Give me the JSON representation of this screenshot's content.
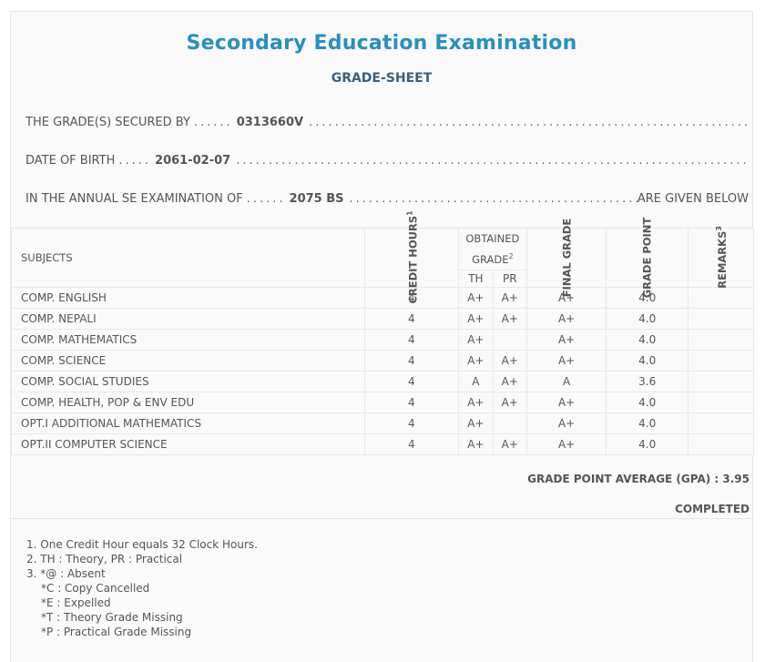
{
  "header": {
    "title": "Secondary Education Examination",
    "subtitle": "GRADE-SHEET"
  },
  "info": {
    "secured_by_label": "THE GRADE(S) SECURED BY",
    "secured_by_value": "0313660V",
    "dob_label": "DATE OF BIRTH",
    "dob_value": "2061-02-07",
    "exam_label": "IN THE ANNUAL SE EXAMINATION OF",
    "exam_value": "2075 BS",
    "exam_tail": "ARE GIVEN BELOW"
  },
  "table": {
    "headers": {
      "subjects": "SUBJECTS",
      "credit_hours": "CREDIT HOURS",
      "credit_hours_sup": "1",
      "obtained_grade": "OBTAINED GRADE",
      "obtained_grade_sup": "2",
      "th": "TH",
      "pr": "PR",
      "final_grade": "FINAL GRADE",
      "grade_point": "GRADE POINT",
      "remarks": "REMARKS",
      "remarks_sup": "3"
    },
    "rows": [
      {
        "subject": "COMP. ENGLISH",
        "credit": "4",
        "th": "A+",
        "pr": "A+",
        "final": "A+",
        "gp": "4.0",
        "remarks": ""
      },
      {
        "subject": "COMP. NEPALI",
        "credit": "4",
        "th": "A+",
        "pr": "A+",
        "final": "A+",
        "gp": "4.0",
        "remarks": ""
      },
      {
        "subject": "COMP. MATHEMATICS",
        "credit": "4",
        "th": "A+",
        "pr": "",
        "final": "A+",
        "gp": "4.0",
        "remarks": ""
      },
      {
        "subject": "COMP. SCIENCE",
        "credit": "4",
        "th": "A+",
        "pr": "A+",
        "final": "A+",
        "gp": "4.0",
        "remarks": ""
      },
      {
        "subject": "COMP. SOCIAL STUDIES",
        "credit": "4",
        "th": "A",
        "pr": "A+",
        "final": "A",
        "gp": "3.6",
        "remarks": ""
      },
      {
        "subject": "COMP. HEALTH, POP & ENV EDU",
        "credit": "4",
        "th": "A+",
        "pr": "A+",
        "final": "A+",
        "gp": "4.0",
        "remarks": ""
      },
      {
        "subject": "OPT.I ADDITIONAL MATHEMATICS",
        "credit": "4",
        "th": "A+",
        "pr": "",
        "final": "A+",
        "gp": "4.0",
        "remarks": ""
      },
      {
        "subject": "OPT.II COMPUTER SCIENCE",
        "credit": "4",
        "th": "A+",
        "pr": "A+",
        "final": "A+",
        "gp": "4.0",
        "remarks": ""
      }
    ]
  },
  "summary": {
    "gpa_label": "GRADE POINT AVERAGE (GPA) : 3.95",
    "status": "COMPLETED"
  },
  "notes": {
    "items": [
      "1. One Credit Hour equals 32 Clock Hours.",
      "2. TH : Theory, PR : Practical",
      "3. *@ : Absent"
    ],
    "sub_items": [
      "*C : Copy Cancelled",
      "*E : Expelled",
      "*T : Theory Grade Missing",
      "*P : Practical Grade Missing"
    ]
  },
  "colors": {
    "title": "#2a8fc0",
    "subtitle": "#3a5f80",
    "text": "#555555",
    "border": "#e8e8e8",
    "background": "#fafafa"
  }
}
